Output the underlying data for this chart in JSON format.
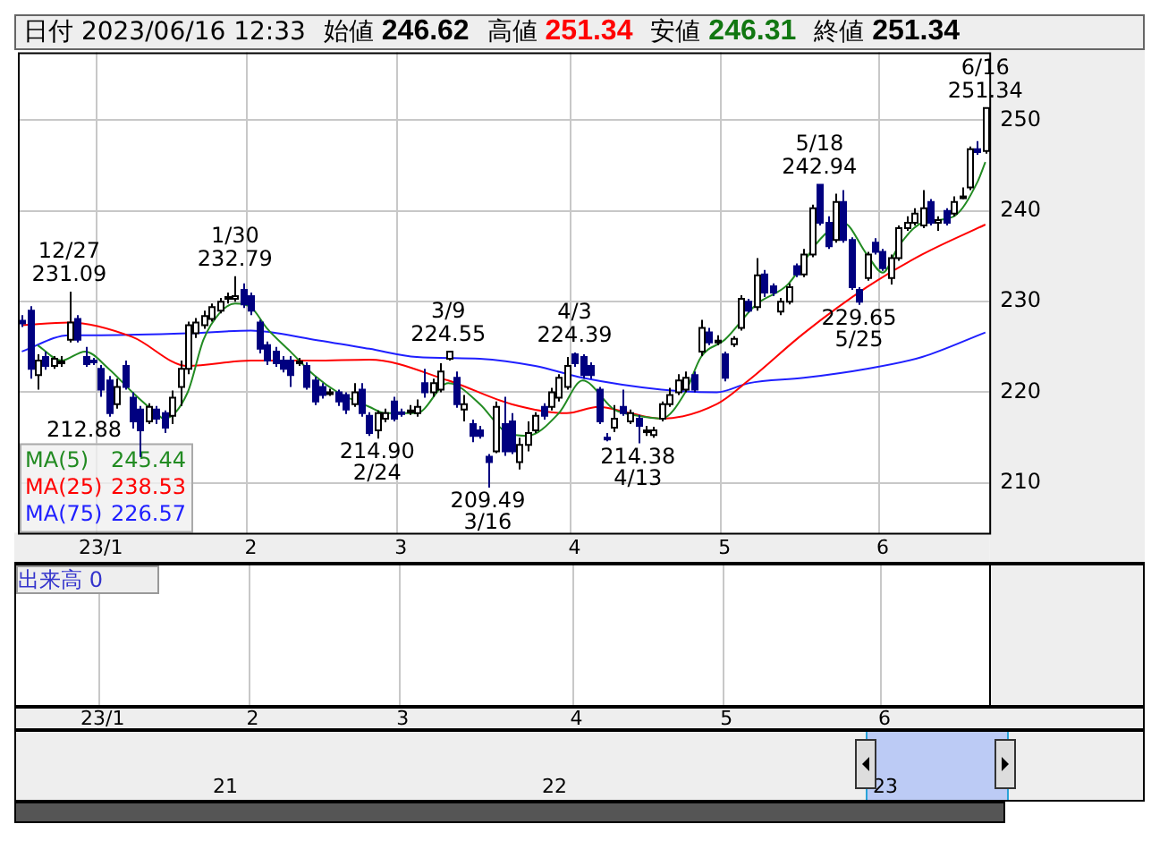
{
  "chart_data": {
    "type": "candlestick",
    "title": "日付 2023/06/16 12:33",
    "categories": [
      null,
      null,
      null,
      null,
      null,
      null,
      null,
      null,
      null,
      null,
      "23/1",
      null,
      null,
      null,
      null,
      null,
      null,
      null,
      null,
      null,
      null,
      null,
      null,
      null,
      null,
      null,
      null,
      null,
      null,
      "2",
      null,
      null,
      null,
      null,
      null,
      null,
      null,
      null,
      null,
      null,
      null,
      null,
      null,
      null,
      null,
      null,
      null,
      null,
      "3",
      null,
      null,
      null,
      null,
      null,
      null,
      null,
      null,
      null,
      null,
      null,
      null,
      null,
      null,
      null,
      null,
      null,
      null,
      null,
      null,
      null,
      "4",
      null,
      null,
      null,
      null,
      null,
      null,
      null,
      null,
      null,
      null,
      null,
      null,
      null,
      null,
      null,
      null,
      null,
      null,
      "5",
      null,
      null,
      null,
      null,
      null,
      null,
      null,
      null,
      null,
      null,
      null,
      null,
      null,
      null,
      null,
      null,
      null,
      null,
      null,
      "6",
      null,
      null,
      null,
      null,
      null,
      null,
      null,
      null,
      null,
      null,
      null,
      null,
      null
    ],
    "ohlc": [
      [
        227.9,
        228.5,
        227.2,
        227.6
      ],
      [
        229.0,
        229.5,
        221.5,
        222.6
      ],
      [
        221.9,
        224.2,
        220.3,
        223.5
      ],
      [
        223.9,
        224.5,
        222.5,
        222.9
      ],
      [
        222.9,
        224.0,
        222.6,
        223.7
      ],
      [
        223.4,
        224.0,
        222.8,
        223.4
      ],
      [
        225.8,
        231.09,
        225.5,
        227.7
      ],
      [
        228.1,
        228.5,
        225.5,
        225.8
      ],
      [
        223.9,
        225.0,
        222.8,
        223.1
      ],
      [
        223.5,
        223.8,
        223.0,
        223.4
      ],
      [
        222.6,
        223.0,
        219.5,
        220.3
      ],
      [
        221.3,
        221.8,
        217.3,
        217.7
      ],
      [
        218.7,
        221.5,
        218.2,
        220.6
      ],
      [
        222.9,
        223.5,
        220.3,
        220.6
      ],
      [
        219.4,
        220.0,
        216.0,
        216.8
      ],
      [
        218.1,
        218.5,
        212.88,
        215.8
      ],
      [
        216.8,
        218.8,
        216.5,
        218.4
      ],
      [
        218.1,
        218.5,
        216.5,
        217.1
      ],
      [
        217.7,
        218.0,
        215.5,
        216.1
      ],
      [
        217.4,
        220.2,
        216.5,
        219.4
      ],
      [
        220.6,
        223.5,
        218.5,
        222.6
      ],
      [
        222.6,
        227.8,
        222.0,
        227.4
      ],
      [
        226.5,
        228.2,
        226.0,
        227.7
      ],
      [
        227.4,
        229.0,
        227.0,
        228.4
      ],
      [
        228.1,
        229.8,
        227.8,
        229.4
      ],
      [
        229.0,
        230.4,
        228.7,
        230.0
      ],
      [
        230.3,
        231.0,
        229.8,
        230.5
      ],
      [
        230.3,
        232.79,
        230.0,
        230.6
      ],
      [
        231.3,
        232.0,
        229.3,
        229.7
      ],
      [
        230.6,
        231.0,
        228.5,
        229.0
      ],
      [
        227.7,
        228.0,
        224.3,
        224.8
      ],
      [
        225.2,
        225.6,
        223.0,
        223.5
      ],
      [
        224.5,
        225.0,
        222.8,
        223.2
      ],
      [
        223.5,
        224.0,
        222.2,
        222.6
      ],
      [
        223.5,
        224.0,
        220.6,
        221.9
      ],
      [
        223.3,
        223.8,
        222.9,
        223.4
      ],
      [
        222.9,
        223.3,
        220.3,
        220.6
      ],
      [
        221.3,
        221.7,
        218.6,
        219.0
      ],
      [
        220.6,
        221.0,
        219.3,
        219.7
      ],
      [
        220.0,
        220.4,
        219.6,
        220.0
      ],
      [
        220.0,
        220.3,
        218.5,
        219.0
      ],
      [
        219.7,
        220.0,
        217.6,
        218.1
      ],
      [
        218.7,
        221.0,
        218.4,
        220.0
      ],
      [
        220.3,
        221.0,
        217.3,
        217.7
      ],
      [
        217.4,
        217.8,
        215.2,
        215.5
      ],
      [
        215.8,
        218.0,
        214.9,
        217.7
      ],
      [
        217.1,
        218.2,
        216.7,
        217.7
      ],
      [
        219.0,
        219.5,
        216.8,
        217.1
      ],
      [
        217.8,
        218.2,
        217.3,
        217.7
      ],
      [
        217.9,
        218.6,
        217.5,
        218.0
      ],
      [
        217.7,
        219.2,
        217.3,
        218.4
      ],
      [
        221.0,
        222.6,
        219.4,
        220.0
      ],
      [
        220.0,
        221.5,
        219.5,
        221.0
      ],
      [
        220.3,
        223.2,
        220.0,
        222.3
      ],
      [
        223.7,
        224.55,
        223.5,
        224.5
      ],
      [
        221.6,
        222.3,
        218.3,
        218.7
      ],
      [
        218.1,
        219.7,
        216.8,
        218.7
      ],
      [
        216.5,
        217.0,
        214.5,
        215.2
      ],
      [
        215.8,
        216.3,
        214.9,
        215.2
      ],
      [
        212.9,
        213.2,
        209.49,
        212.3
      ],
      [
        213.5,
        219.0,
        213.3,
        218.4
      ],
      [
        216.5,
        219.5,
        213.0,
        213.5
      ],
      [
        216.8,
        217.7,
        213.2,
        213.5
      ],
      [
        212.3,
        215.0,
        211.5,
        214.2
      ],
      [
        214.2,
        216.8,
        213.5,
        215.5
      ],
      [
        215.8,
        217.8,
        215.5,
        217.4
      ],
      [
        218.4,
        218.8,
        217.0,
        217.4
      ],
      [
        218.4,
        220.5,
        218.0,
        220.0
      ],
      [
        219.4,
        222.0,
        219.0,
        221.6
      ],
      [
        220.6,
        223.9,
        220.3,
        222.9
      ],
      [
        224.2,
        224.39,
        222.8,
        223.2
      ],
      [
        223.9,
        224.2,
        221.5,
        221.9
      ],
      [
        222.9,
        223.3,
        221.5,
        221.9
      ],
      [
        220.3,
        220.6,
        216.5,
        216.8
      ],
      [
        215.0,
        215.5,
        214.6,
        214.9
      ],
      [
        216.1,
        218.6,
        215.6,
        217.1
      ],
      [
        218.4,
        220.3,
        217.4,
        217.7
      ],
      [
        216.8,
        218.1,
        216.5,
        217.7
      ],
      [
        217.1,
        217.5,
        214.38,
        216.3
      ],
      [
        215.8,
        216.3,
        215.2,
        215.8
      ],
      [
        215.3,
        216.2,
        215.0,
        215.8
      ],
      [
        217.1,
        219.0,
        216.8,
        218.7
      ],
      [
        218.7,
        220.5,
        218.4,
        219.7
      ],
      [
        220.0,
        222.0,
        219.7,
        221.3
      ],
      [
        220.3,
        222.3,
        220.0,
        221.6
      ],
      [
        221.9,
        222.3,
        220.0,
        220.3
      ],
      [
        224.5,
        228.0,
        224.0,
        227.1
      ],
      [
        226.6,
        227.1,
        225.2,
        225.5
      ],
      [
        225.7,
        226.3,
        225.2,
        225.7
      ],
      [
        224.2,
        224.5,
        221.2,
        221.6
      ],
      [
        225.3,
        226.2,
        225.0,
        225.9
      ],
      [
        227.1,
        230.7,
        226.8,
        230.3
      ],
      [
        230.0,
        230.3,
        228.8,
        229.0
      ],
      [
        229.4,
        234.8,
        229.0,
        232.9
      ],
      [
        233.0,
        233.5,
        230.5,
        231.0
      ],
      [
        231.7,
        232.0,
        230.6,
        231.0
      ],
      [
        228.9,
        230.4,
        228.5,
        230.0
      ],
      [
        230.0,
        232.0,
        229.7,
        231.6
      ],
      [
        233.9,
        234.2,
        232.7,
        233.0
      ],
      [
        233.0,
        235.8,
        232.7,
        235.2
      ],
      [
        235.2,
        240.7,
        234.9,
        240.3
      ],
      [
        242.9,
        242.94,
        238.4,
        238.7
      ],
      [
        238.7,
        239.4,
        235.8,
        236.1
      ],
      [
        236.8,
        241.9,
        236.5,
        241.0
      ],
      [
        241.0,
        242.3,
        236.5,
        236.8
      ],
      [
        236.8,
        237.1,
        231.3,
        231.6
      ],
      [
        231.3,
        231.6,
        229.65,
        230.0
      ],
      [
        232.6,
        235.5,
        232.3,
        235.2
      ],
      [
        236.5,
        237.0,
        235.2,
        235.5
      ],
      [
        235.5,
        235.8,
        233.4,
        233.7
      ],
      [
        232.6,
        235.2,
        231.9,
        234.8
      ],
      [
        234.8,
        238.4,
        234.5,
        238.1
      ],
      [
        238.1,
        239.4,
        237.8,
        238.7
      ],
      [
        238.7,
        240.3,
        238.4,
        239.7
      ],
      [
        238.4,
        242.3,
        238.1,
        240.3
      ],
      [
        241.0,
        241.3,
        238.4,
        238.7
      ],
      [
        238.7,
        239.4,
        237.8,
        239.0
      ],
      [
        240.0,
        240.3,
        238.4,
        238.7
      ],
      [
        239.7,
        241.6,
        239.4,
        241.0
      ],
      [
        241.6,
        242.6,
        241.3,
        241.6
      ],
      [
        242.6,
        247.1,
        242.3,
        246.8
      ],
      [
        246.8,
        247.7,
        246.2,
        246.5
      ],
      [
        246.62,
        251.34,
        246.31,
        251.34
      ]
    ],
    "colors": [
      "#000080",
      "#000080",
      "#ffffff",
      "#000080",
      "#ffffff",
      "#ffffff",
      "#ffffff",
      "#000080",
      "#000080",
      "#000080",
      "#000080",
      "#000080",
      "#ffffff",
      "#000080",
      "#000080",
      "#000080",
      "#ffffff",
      "#000080",
      "#000080",
      "#ffffff",
      "#ffffff",
      "#ffffff",
      "#ffffff",
      "#ffffff",
      "#ffffff",
      "#ffffff",
      "#ffffff",
      "#ffffff",
      "#000080",
      "#000080",
      "#000080",
      "#000080",
      "#000080",
      "#000080",
      "#000080",
      "#ffffff",
      "#000080",
      "#000080",
      "#000080",
      "#ffffff",
      "#000080",
      "#000080",
      "#ffffff",
      "#000080",
      "#000080",
      "#ffffff",
      "#ffffff",
      "#000080",
      "#000080",
      "#ffffff",
      "#ffffff",
      "#000080",
      "#ffffff",
      "#ffffff",
      "#ffffff",
      "#000080",
      "#ffffff",
      "#000080",
      "#000080",
      "#000080",
      "#ffffff",
      "#000080",
      "#000080",
      "#ffffff",
      "#ffffff",
      "#ffffff",
      "#000080",
      "#ffffff",
      "#ffffff",
      "#ffffff",
      "#000080",
      "#000080",
      "#000080",
      "#000080",
      "#000080",
      "#ffffff",
      "#000080",
      "#ffffff",
      "#000080",
      "#ffffff",
      "#ffffff",
      "#ffffff",
      "#ffffff",
      "#ffffff",
      "#ffffff",
      "#000080",
      "#ffffff",
      "#000080",
      "#ffffff",
      "#000080",
      "#ffffff",
      "#ffffff",
      "#000080",
      "#ffffff",
      "#000080",
      "#000080",
      "#ffffff",
      "#ffffff",
      "#000080",
      "#ffffff",
      "#ffffff",
      "#000080",
      "#000080",
      "#ffffff",
      "#000080",
      "#000080",
      "#000080",
      "#ffffff",
      "#000080",
      "#000080",
      "#ffffff",
      "#ffffff",
      "#ffffff",
      "#ffffff",
      "#ffffff",
      "#000080",
      "#ffffff",
      "#000080",
      "#ffffff",
      "#ffffff",
      "#ffffff",
      "#000080",
      "#ffffff"
    ],
    "series": [
      {
        "type": "line",
        "name": "MA(5)",
        "color": "#228b22",
        "values": [
          null,
          null,
          225.2,
          null,
          null,
          223.5,
          null,
          null,
          224.5,
          null,
          null,
          222.6,
          null,
          null,
          220,
          null,
          null,
          217.7,
          217.1,
          null,
          null,
          220,
          null,
          225.8,
          null,
          228.7,
          null,
          229.8,
          null,
          229.4,
          null,
          227.1,
          null,
          null,
          224.5,
          null,
          null,
          221.9,
          null,
          null,
          220,
          null,
          null,
          null,
          218.4,
          null,
          217.7,
          null,
          null,
          null,
          217.7,
          null,
          null,
          null,
          221,
          null,
          null,
          null,
          218.7,
          null,
          null,
          215.8,
          null,
          null,
          215.2,
          null,
          null,
          null,
          217.7,
          null,
          null,
          221.3,
          null,
          null,
          null,
          218.1,
          null,
          null,
          217.4,
          null,
          null,
          217.1,
          null,
          null,
          220,
          null,
          223.9,
          null,
          null,
          225.8,
          null,
          null,
          null,
          229.7,
          null,
          null,
          null,
          231.9,
          null,
          null,
          null,
          236.8,
          null,
          null,
          238.7,
          null,
          null,
          235.2,
          null,
          233.2,
          null,
          236.1,
          null,
          null,
          238.7,
          null,
          null,
          null,
          239.4,
          null,
          null,
          243.2,
          245.4
        ]
      },
      {
        "type": "line",
        "name": "MA(25)",
        "color": "#ff0000",
        "values": [
          227.4,
          null,
          null,
          null,
          null,
          null,
          227.7,
          null,
          null,
          null,
          null,
          null,
          null,
          null,
          226.1,
          null,
          null,
          null,
          null,
          null,
          null,
          222.9,
          null,
          null,
          null,
          null,
          null,
          null,
          null,
          223.5,
          null,
          null,
          null,
          null,
          null,
          null,
          null,
          223.5,
          null,
          null,
          null,
          null,
          null,
          null,
          223.6,
          null,
          null,
          null,
          null,
          null,
          null,
          null,
          null,
          null,
          221.3,
          null,
          null,
          null,
          null,
          null,
          null,
          null,
          218.7,
          null,
          null,
          null,
          null,
          null,
          null,
          217.7,
          null,
          null,
          null,
          218.4,
          null,
          null,
          null,
          217.7,
          null,
          null,
          null,
          217.1,
          null,
          null,
          null,
          null,
          null,
          null,
          218.7,
          null,
          null,
          null,
          221.3,
          null,
          null,
          null,
          null,
          null,
          null,
          226.5,
          null,
          null,
          null,
          null,
          null,
          null,
          null,
          231.6,
          null,
          null,
          null,
          null,
          null,
          null,
          235.2,
          null,
          null,
          null,
          null,
          null,
          null,
          null,
          238.5
        ]
      },
      {
        "type": "line",
        "name": "MA(75)",
        "color": "#1f1fff",
        "values": [
          224.5,
          null,
          null,
          null,
          null,
          null,
          226.3,
          null,
          null,
          null,
          226.3,
          null,
          null,
          null,
          null,
          null,
          null,
          null,
          null,
          null,
          null,
          226.5,
          null,
          null,
          null,
          null,
          null,
          null,
          null,
          226.8,
          null,
          null,
          null,
          null,
          null,
          null,
          null,
          225.8,
          null,
          null,
          null,
          null,
          null,
          null,
          224.8,
          null,
          null,
          null,
          null,
          null,
          223.9,
          null,
          null,
          null,
          null,
          null,
          null,
          null,
          223.7,
          null,
          null,
          null,
          null,
          null,
          null,
          222.9,
          null,
          null,
          null,
          null,
          null,
          221.6,
          null,
          null,
          null,
          null,
          null,
          null,
          null,
          null,
          null,
          220.3,
          null,
          null,
          null,
          null,
          null,
          null,
          220.0,
          null,
          null,
          null,
          221,
          null,
          null,
          null,
          null,
          null,
          null,
          221.6,
          null,
          null,
          null,
          null,
          null,
          null,
          null,
          222.6,
          null,
          null,
          null,
          null,
          null,
          null,
          223.9,
          null,
          null,
          null,
          null,
          null,
          null,
          null,
          226.6
        ]
      }
    ],
    "ylim": [
      204.5,
      257.5
    ],
    "yticks": [
      210,
      220,
      230,
      240,
      250
    ],
    "grid": true,
    "legend": "bottom left",
    "marker": "none",
    "annotations": [
      "始値 246.62",
      "高値 251.34",
      "安値 246.31",
      "終値 251.34",
      "出来高 0",
      "21",
      "22",
      "23",
      "245.44",
      "238.53",
      "226.57",
      "212.88",
      {
        "text": "12/27\n231.09",
        "y": 231.09
      },
      {
        "text": "1/30\n232.79",
        "y": 232.79
      },
      {
        "text": "214.90\n2/24",
        "y": 214.9
      },
      {
        "text": "3/9\n224.55",
        "y": 224.55
      },
      {
        "text": "209.49\n3/16",
        "y": 209.49
      },
      {
        "text": "4/3\n224.39",
        "y": 224.39
      },
      {
        "text": "214.38\n4/13",
        "y": 214.38
      },
      {
        "text": "5/18\n242.94",
        "y": 242.94
      },
      {
        "text": "229.65\n5/25",
        "y": 229.65
      },
      {
        "text": "6/16\n251.34",
        "y": 251.34
      }
    ]
  }
}
